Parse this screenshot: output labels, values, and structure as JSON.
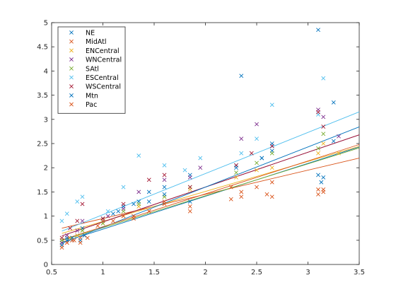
{
  "chart_data": {
    "type": "scatter",
    "xlim": [
      0.5,
      3.5
    ],
    "ylim": [
      0,
      5
    ],
    "x_ticks": [
      0.5,
      1,
      1.5,
      2,
      2.5,
      3,
      3.5
    ],
    "x_tick_labels": [
      "0.5",
      "1",
      "1.5",
      "2",
      "2.5",
      "3",
      "3.5"
    ],
    "y_ticks": [
      0,
      0.5,
      1,
      1.5,
      2,
      2.5,
      3,
      3.5,
      4,
      4.5,
      5
    ],
    "y_tick_labels": [
      "0",
      "0.5",
      "1",
      "1.5",
      "2",
      "2.5",
      "3",
      "3.5",
      "4",
      "4.5",
      "5"
    ],
    "grid": false,
    "legend_position": "top-left",
    "marker": "x",
    "series": [
      {
        "name": "NE",
        "color": "#0072BD",
        "fit": {
          "slope": 0.68,
          "intercept": 0.05
        },
        "x": [
          0.6,
          0.65,
          0.7,
          0.75,
          0.8,
          1.0,
          1.1,
          1.2,
          1.35,
          1.45,
          1.6,
          1.85,
          2.3,
          2.55,
          2.65,
          3.1,
          3.15,
          3.25
        ],
        "y": [
          0.45,
          0.55,
          0.5,
          0.6,
          0.75,
          0.95,
          1.05,
          1.2,
          1.3,
          1.5,
          1.6,
          1.85,
          2.05,
          2.2,
          2.35,
          1.85,
          1.8,
          2.55
        ]
      },
      {
        "name": "MidAtl",
        "color": "#D95319",
        "fit": {
          "slope": 0.5,
          "intercept": 0.45
        },
        "x": [
          0.6,
          0.65,
          0.7,
          0.78,
          0.82,
          0.95,
          1.1,
          1.3,
          1.45,
          1.6,
          1.85,
          2.25,
          2.35,
          2.6,
          2.65,
          3.1,
          3.15
        ],
        "y": [
          0.4,
          0.45,
          0.5,
          0.55,
          0.6,
          0.8,
          0.9,
          1.0,
          1.1,
          1.3,
          1.2,
          1.6,
          1.5,
          1.45,
          1.4,
          1.55,
          1.5
        ]
      },
      {
        "name": "ENCentral",
        "color": "#EDB120",
        "fit": {
          "slope": 0.62,
          "intercept": 0.27
        },
        "x": [
          0.6,
          0.68,
          0.75,
          0.8,
          1.0,
          1.2,
          1.35,
          1.6,
          1.85,
          2.3,
          2.5,
          2.65,
          3.1,
          3.15,
          3.3
        ],
        "y": [
          0.5,
          0.55,
          0.6,
          0.7,
          0.85,
          1.0,
          1.2,
          1.4,
          1.55,
          1.8,
          1.95,
          2.0,
          2.3,
          2.5,
          2.3
        ]
      },
      {
        "name": "WNCentral",
        "color": "#7E2F8E",
        "fit": {
          "slope": 0.72,
          "intercept": 0.16
        },
        "x": [
          0.6,
          0.65,
          0.75,
          0.8,
          1.05,
          1.2,
          1.35,
          1.6,
          1.85,
          1.95,
          2.35,
          2.5,
          2.65,
          3.1,
          3.15,
          3.3
        ],
        "y": [
          0.45,
          0.6,
          0.7,
          0.9,
          1.0,
          1.15,
          1.5,
          1.75,
          1.8,
          2.0,
          2.6,
          2.9,
          2.45,
          3.2,
          3.05,
          2.65
        ]
      },
      {
        "name": "SAtl",
        "color": "#77AC30",
        "fit": {
          "slope": 0.66,
          "intercept": 0.1
        },
        "x": [
          0.6,
          0.7,
          0.8,
          1.0,
          1.2,
          1.35,
          1.6,
          1.85,
          2.3,
          2.5,
          2.65,
          3.1,
          3.15
        ],
        "y": [
          0.5,
          0.55,
          0.7,
          0.85,
          1.1,
          1.25,
          1.4,
          1.6,
          1.9,
          2.1,
          2.3,
          2.4,
          2.7
        ]
      },
      {
        "name": "ESCentral",
        "color": "#4DBEEE",
        "fit": {
          "slope": 0.85,
          "intercept": 0.18
        },
        "x": [
          0.6,
          0.65,
          0.75,
          0.8,
          1.05,
          1.2,
          1.35,
          1.6,
          1.8,
          1.95,
          2.35,
          2.5,
          2.65,
          3.1,
          3.15
        ],
        "y": [
          0.9,
          1.05,
          1.3,
          1.4,
          1.1,
          1.6,
          2.25,
          2.05,
          1.95,
          2.2,
          2.3,
          2.6,
          3.3,
          3.1,
          3.85
        ]
      },
      {
        "name": "WSCentral",
        "color": "#A2142F",
        "fit": {
          "slope": 0.72,
          "intercept": 0.16
        },
        "x": [
          0.6,
          0.68,
          0.75,
          0.8,
          1.0,
          1.2,
          1.45,
          1.6,
          1.85,
          2.3,
          2.45,
          2.65,
          3.1,
          3.15
        ],
        "y": [
          0.55,
          0.75,
          0.9,
          1.25,
          0.95,
          1.25,
          1.75,
          1.85,
          1.6,
          2.05,
          2.3,
          2.45,
          3.15,
          2.85
        ]
      },
      {
        "name": "Mtn",
        "color": "#0072BD",
        "fit": {
          "slope": 0.83,
          "intercept": -0.06
        },
        "x": [
          0.6,
          0.65,
          0.7,
          0.78,
          0.82,
          1.0,
          1.15,
          1.3,
          1.45,
          1.6,
          1.85,
          2.3,
          2.35,
          2.55,
          2.65,
          3.1,
          3.13,
          3.25
        ],
        "y": [
          0.4,
          0.5,
          0.55,
          0.5,
          0.6,
          0.9,
          1.1,
          1.25,
          1.3,
          1.45,
          1.3,
          2.0,
          3.9,
          2.2,
          2.5,
          4.85,
          1.7,
          3.35
        ]
      },
      {
        "name": "Pac",
        "color": "#D95319",
        "fit": {
          "slope": 0.68,
          "intercept": 0.1
        },
        "x": [
          0.6,
          0.65,
          0.72,
          0.78,
          0.85,
          1.0,
          1.2,
          1.3,
          1.45,
          1.6,
          1.85,
          2.25,
          2.35,
          2.5,
          2.65,
          3.1,
          3.15
        ],
        "y": [
          0.35,
          0.45,
          0.5,
          0.45,
          0.55,
          0.9,
          1.0,
          0.95,
          1.1,
          1.25,
          1.1,
          1.35,
          1.4,
          1.6,
          1.7,
          1.45,
          1.55
        ]
      }
    ]
  }
}
